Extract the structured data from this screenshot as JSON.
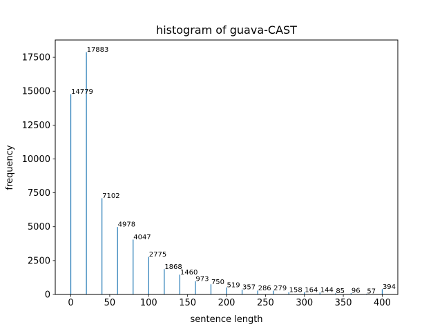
{
  "chart_data": {
    "type": "bar",
    "title": "histogram of guava-CAST",
    "xlabel": "sentence length",
    "ylabel": "frequency",
    "xlim": [
      -20,
      420
    ],
    "ylim": [
      0,
      18778
    ],
    "x_ticks": [
      0,
      50,
      100,
      150,
      200,
      250,
      300,
      350,
      400
    ],
    "y_ticks": [
      0,
      2500,
      5000,
      7500,
      10000,
      12500,
      15000,
      17500
    ],
    "grid": false,
    "legend": "none",
    "bar_color": "#1f77b4",
    "x": [
      0,
      20,
      40,
      60,
      80,
      100,
      120,
      140,
      160,
      180,
      200,
      220,
      240,
      260,
      280,
      300,
      320,
      340,
      360,
      380,
      400
    ],
    "values": [
      14779,
      17883,
      7102,
      4978,
      4047,
      2775,
      1868,
      1460,
      973,
      750,
      519,
      357,
      286,
      279,
      158,
      164,
      144,
      85,
      96,
      57,
      394
    ],
    "value_labels": [
      "14779",
      "17883",
      "7102",
      "4978",
      "4047",
      "2775",
      "1868",
      "1460",
      "973",
      "750",
      "519",
      "357",
      "286",
      "279",
      "158",
      "164",
      "144",
      "85",
      "96",
      "57",
      "394"
    ]
  }
}
